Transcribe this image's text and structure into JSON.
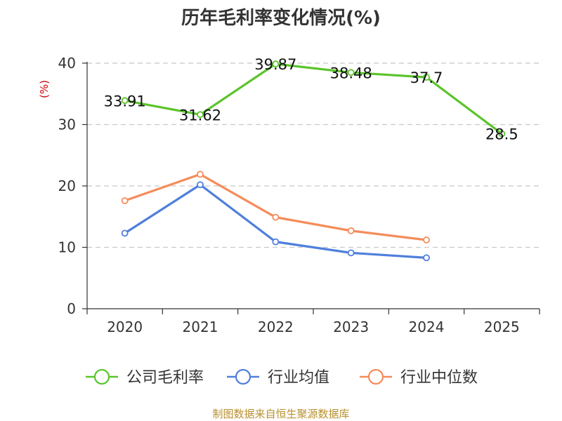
{
  "chart_data": {
    "type": "line",
    "title": "历年毛利率变化情况(%)",
    "ylabel": "(%)",
    "xlabel": "",
    "categories": [
      "2020",
      "2021",
      "2022",
      "2023",
      "2024",
      "2025"
    ],
    "ylim": [
      0,
      40
    ],
    "yticks": [
      0,
      10,
      20,
      30,
      40
    ],
    "grid": true,
    "legend_position": "bottom",
    "series": [
      {
        "name": "公司毛利率",
        "color": "#5bc42a",
        "values": [
          33.91,
          31.62,
          39.87,
          38.48,
          37.7,
          28.5
        ],
        "labels": [
          "33.91",
          "31.62",
          "39.87",
          "38.48",
          "37.7",
          "28.5"
        ]
      },
      {
        "name": "行业均值",
        "color": "#4f7fdc",
        "values": [
          12.3,
          20.2,
          10.9,
          9.1,
          8.3,
          null
        ]
      },
      {
        "name": "行业中位数",
        "color": "#f58c5a",
        "values": [
          17.6,
          21.9,
          14.9,
          12.7,
          11.2,
          null
        ]
      }
    ]
  },
  "source": "制图数据来自恒生聚源数据库"
}
